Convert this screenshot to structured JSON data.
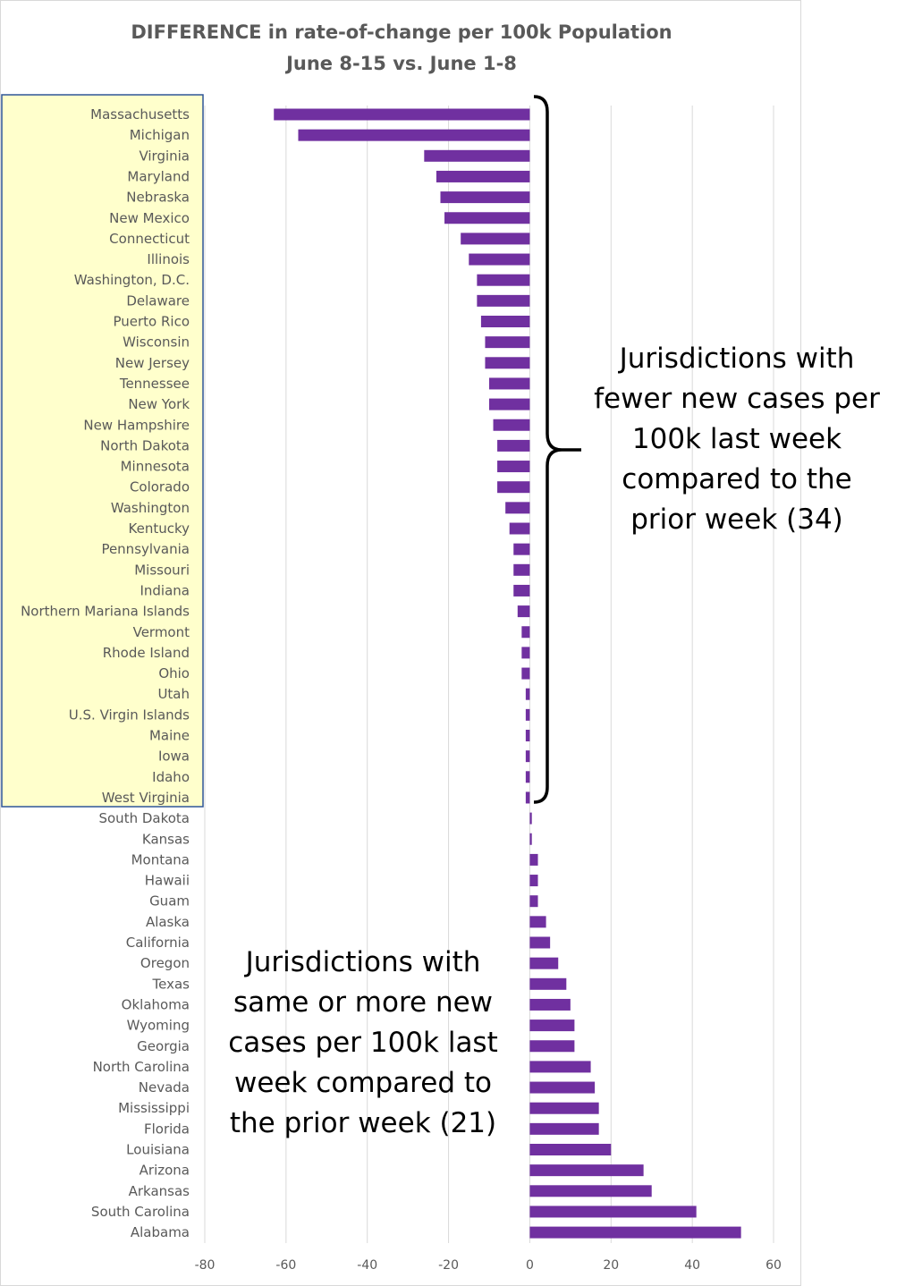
{
  "chart_data": {
    "type": "bar",
    "orientation": "horizontal",
    "title": "DIFFERENCE in rate-of-change per 100k Population",
    "subtitle": "June 8-15 vs. June 1-8",
    "xlim": [
      -80,
      60
    ],
    "xticks": [
      -80,
      -60,
      -40,
      -20,
      0,
      20,
      40,
      60
    ],
    "grid": true,
    "bar_color": "#7030A0",
    "highlight_color": "#FFFFCC",
    "categories": [
      "Massachusetts",
      "Michigan",
      "Virginia",
      "Maryland",
      "Nebraska",
      "New Mexico",
      "Connecticut",
      "Illinois",
      "Washington, D.C.",
      "Delaware",
      "Puerto Rico",
      "Wisconsin",
      "New Jersey",
      "Tennessee",
      "New York",
      "New Hampshire",
      "North Dakota",
      "Minnesota",
      "Colorado",
      "Washington",
      "Kentucky",
      "Pennsylvania",
      "Missouri",
      "Indiana",
      "Northern Mariana Islands",
      "Vermont",
      "Rhode Island",
      "Ohio",
      "Utah",
      "U.S. Virgin Islands",
      "Maine",
      "Iowa",
      "Idaho",
      "West Virginia",
      "South Dakota",
      "Kansas",
      "Montana",
      "Hawaii",
      "Guam",
      "Alaska",
      "California",
      "Oregon",
      "Texas",
      "Oklahoma",
      "Wyoming",
      "Georgia",
      "North Carolina",
      "Nevada",
      "Mississippi",
      "Florida",
      "Louisiana",
      "Arizona",
      "Arkansas",
      "South Carolina",
      "Alabama"
    ],
    "values": [
      -63,
      -57,
      -26,
      -23,
      -22,
      -21,
      -17,
      -15,
      -13,
      -13,
      -12,
      -11,
      -11,
      -10,
      -10,
      -9,
      -8,
      -8,
      -8,
      -6,
      -5,
      -4,
      -4,
      -4,
      -3,
      -2,
      -2,
      -2,
      -1,
      -1,
      -1,
      -1,
      -1,
      -1,
      0.5,
      0.5,
      2,
      2,
      2,
      4,
      5,
      7,
      9,
      10,
      11,
      11,
      15,
      16,
      17,
      17,
      20,
      28,
      30,
      41,
      52
    ],
    "annotations": [
      {
        "lines": [
          "Jurisdictions with",
          "fewer new cases per",
          "100k last week",
          "compared to the",
          "prior week (34)"
        ]
      },
      {
        "lines": [
          "Jurisdictions with",
          "same or more new",
          "cases per 100k last",
          "week compared to",
          "the prior week (21)"
        ]
      }
    ]
  }
}
